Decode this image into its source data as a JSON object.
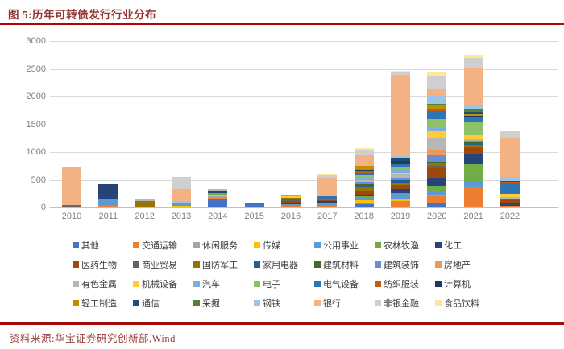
{
  "title": "图 5:历年可转债发行行业分布",
  "source": "资料来源:华宝证券研究创新部,Wind",
  "colors": {
    "accent_red": "#c00000",
    "title_text": "#943634",
    "axis_text": "#7f7f7f",
    "legend_text": "#3d3d3d",
    "gridline": "#d9d9d9"
  },
  "chart_data": {
    "type": "bar",
    "stacked": true,
    "title": "历年可转债发行行业分布",
    "xlabel": "",
    "ylabel": "",
    "ylim": [
      0,
      3000
    ],
    "yticks": [
      0,
      500,
      1000,
      1500,
      2000,
      2500,
      3000
    ],
    "grid": true,
    "legend_position": "bottom",
    "categories": [
      "2010",
      "2011",
      "2012",
      "2013",
      "2014",
      "2015",
      "2016",
      "2017",
      "2018",
      "2019",
      "2020",
      "2021",
      "2022"
    ],
    "series": [
      {
        "name": "其他",
        "color": "#4472c4",
        "values": [
          0,
          0,
          0,
          0,
          145,
          85,
          0,
          15,
          60,
          0,
          70,
          0,
          0
        ]
      },
      {
        "name": "交通运输",
        "color": "#ed7d31",
        "values": [
          0,
          40,
          0,
          0,
          35,
          0,
          30,
          10,
          30,
          115,
          140,
          360,
          30
        ]
      },
      {
        "name": "休闲服务",
        "color": "#a5a5a5",
        "values": [
          0,
          0,
          0,
          0,
          20,
          0,
          0,
          0,
          0,
          0,
          25,
          0,
          0
        ]
      },
      {
        "name": "传媒",
        "color": "#ffc000",
        "values": [
          0,
          0,
          0,
          35,
          30,
          0,
          0,
          0,
          35,
          35,
          0,
          0,
          0
        ]
      },
      {
        "name": "公用事业",
        "color": "#5b9bd5",
        "values": [
          0,
          115,
          0,
          40,
          0,
          0,
          35,
          40,
          50,
          105,
          35,
          120,
          0
        ]
      },
      {
        "name": "农林牧渔",
        "color": "#70ad47",
        "values": [
          0,
          0,
          0,
          0,
          30,
          0,
          0,
          20,
          25,
          0,
          120,
          300,
          0
        ]
      },
      {
        "name": "化工",
        "color": "#264478",
        "values": [
          20,
          260,
          0,
          0,
          30,
          0,
          25,
          25,
          35,
          80,
          145,
          195,
          50
        ]
      },
      {
        "name": "医药生物",
        "color": "#9e480e",
        "values": [
          0,
          0,
          0,
          0,
          0,
          0,
          30,
          20,
          50,
          65,
          170,
          95,
          50
        ]
      },
      {
        "name": "商业贸易",
        "color": "#636363",
        "values": [
          15,
          0,
          0,
          0,
          0,
          0,
          25,
          0,
          25,
          0,
          30,
          25,
          20
        ]
      },
      {
        "name": "国防军工",
        "color": "#997300",
        "values": [
          0,
          0,
          110,
          0,
          0,
          0,
          30,
          15,
          50,
          50,
          60,
          30,
          0
        ]
      },
      {
        "name": "家用电器",
        "color": "#255e91",
        "values": [
          0,
          0,
          0,
          0,
          0,
          0,
          0,
          0,
          35,
          50,
          0,
          25,
          0
        ]
      },
      {
        "name": "建筑材料",
        "color": "#43682b",
        "values": [
          0,
          0,
          0,
          0,
          0,
          0,
          0,
          0,
          25,
          0,
          30,
          30,
          0
        ]
      },
      {
        "name": "建筑装饰",
        "color": "#698ed0",
        "values": [
          0,
          0,
          0,
          0,
          0,
          0,
          0,
          0,
          40,
          40,
          120,
          30,
          0
        ]
      },
      {
        "name": "房地产",
        "color": "#f1975a",
        "values": [
          0,
          0,
          0,
          0,
          0,
          0,
          0,
          0,
          0,
          0,
          80,
          0,
          0
        ]
      },
      {
        "name": "有色金属",
        "color": "#b7b7b7",
        "values": [
          0,
          0,
          35,
          0,
          40,
          0,
          0,
          0,
          35,
          50,
          240,
          20,
          40
        ]
      },
      {
        "name": "机械设备",
        "color": "#ffcd33",
        "values": [
          0,
          0,
          0,
          0,
          0,
          0,
          30,
          0,
          0,
          40,
          120,
          70,
          55
        ]
      },
      {
        "name": "汽车",
        "color": "#7cafdd",
        "values": [
          0,
          0,
          0,
          0,
          0,
          0,
          25,
          0,
          40,
          50,
          55,
          0,
          0
        ]
      },
      {
        "name": "电子",
        "color": "#8cc168",
        "values": [
          0,
          0,
          0,
          0,
          0,
          0,
          0,
          0,
          50,
          50,
          160,
          240,
          0
        ]
      },
      {
        "name": "电气设备",
        "color": "#2e75b6",
        "values": [
          0,
          0,
          0,
          0,
          0,
          0,
          0,
          65,
          35,
          60,
          145,
          95,
          195
        ]
      },
      {
        "name": "纺织服装",
        "color": "#c55a11",
        "values": [
          0,
          0,
          0,
          0,
          0,
          0,
          0,
          0,
          30,
          0,
          35,
          0,
          25
        ]
      },
      {
        "name": "计算机",
        "color": "#203864",
        "values": [
          0,
          0,
          0,
          0,
          0,
          0,
          0,
          0,
          35,
          50,
          0,
          25,
          0
        ]
      },
      {
        "name": "轻工制造",
        "color": "#bf8f00",
        "values": [
          0,
          0,
          0,
          0,
          0,
          0,
          0,
          0,
          50,
          0,
          60,
          25,
          0
        ]
      },
      {
        "name": "通信",
        "color": "#1f4e79",
        "values": [
          0,
          0,
          0,
          0,
          0,
          0,
          0,
          0,
          0,
          50,
          0,
          40,
          20
        ]
      },
      {
        "name": "采掘",
        "color": "#538135",
        "values": [
          15,
          0,
          0,
          0,
          0,
          0,
          0,
          0,
          0,
          0,
          35,
          40,
          0
        ]
      },
      {
        "name": "钢铁",
        "color": "#9dc3e6",
        "values": [
          0,
          0,
          0,
          35,
          0,
          0,
          0,
          0,
          0,
          40,
          145,
          70,
          70
        ]
      },
      {
        "name": "银行",
        "color": "#f4b183",
        "values": [
          670,
          0,
          0,
          230,
          0,
          0,
          0,
          330,
          205,
          1460,
          120,
          675,
          710
        ]
      },
      {
        "name": "非银金融",
        "color": "#cfcfcf",
        "values": [
          0,
          0,
          0,
          205,
          0,
          0,
          0,
          40,
          95,
          50,
          240,
          193,
          120
        ]
      },
      {
        "name": "食品饮料",
        "color": "#ffe699",
        "values": [
          0,
          0,
          15,
          0,
          0,
          0,
          0,
          25,
          35,
          30,
          70,
          48,
          0
        ]
      }
    ]
  }
}
